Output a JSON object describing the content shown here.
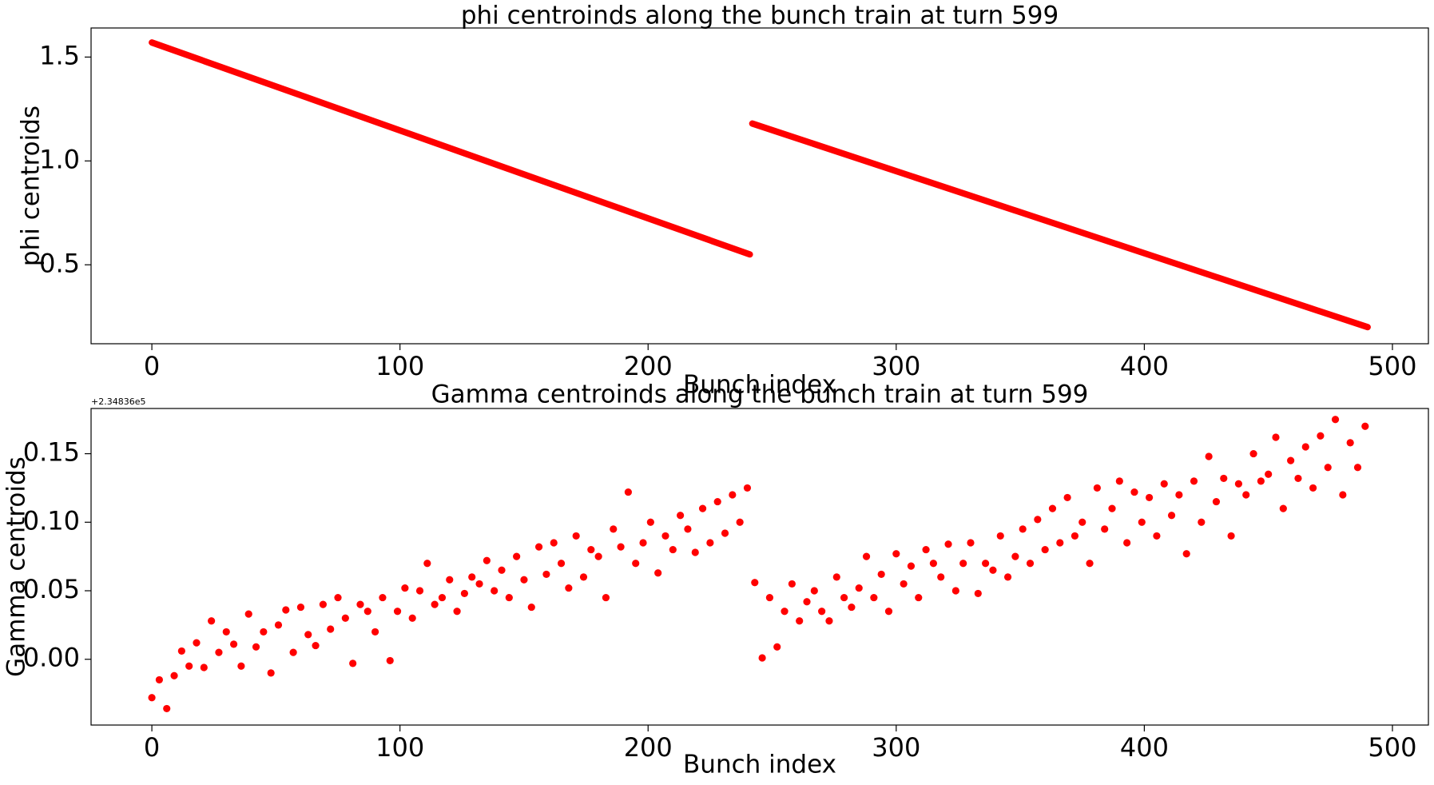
{
  "chart_data": [
    {
      "type": "line",
      "title": "phi centroinds along the bunch train at turn 599",
      "xlabel": "Bunch index",
      "ylabel": "phi centroids",
      "series": [
        {
          "color": "#ff0000",
          "x": [
            0,
            241
          ],
          "values": [
            1.57,
            0.55
          ]
        },
        {
          "color": "#ff0000",
          "x": [
            242,
            490
          ],
          "values": [
            1.18,
            0.2
          ]
        }
      ],
      "xlim": [
        -24.5,
        514.5
      ],
      "ylim": [
        0.12,
        1.64
      ],
      "xticks": [
        0,
        100,
        200,
        300,
        400,
        500
      ],
      "yticks": [
        {
          "value": 0.5,
          "label": "0.5"
        },
        {
          "value": 1.0,
          "label": "1.0"
        },
        {
          "value": 1.5,
          "label": "1.5"
        }
      ]
    },
    {
      "type": "scatter",
      "title": "Gamma centroinds along the bunch train at turn 599",
      "xlabel": "Bunch index",
      "ylabel": "Gamma centroids",
      "offset_label": "+2.34836e5",
      "series": [
        {
          "color": "#ff0000",
          "x": [
            0,
            3,
            6,
            9,
            12,
            15,
            18,
            21,
            24,
            27,
            30,
            33,
            36,
            39,
            42,
            45,
            48,
            51,
            54,
            57,
            60,
            63,
            66,
            69,
            72,
            75,
            78,
            81,
            84,
            87,
            90,
            93,
            96,
            99,
            102,
            105,
            108,
            111,
            114,
            117,
            120,
            123,
            126,
            129,
            132,
            135,
            138,
            141,
            144,
            147,
            150,
            153,
            156,
            159,
            162,
            165,
            168,
            171,
            174,
            177,
            180,
            183,
            186,
            189,
            192,
            195,
            198,
            201,
            204,
            207,
            210,
            213,
            216,
            219,
            222,
            225,
            228,
            231,
            234,
            237,
            240,
            243,
            246,
            249,
            252,
            255,
            258,
            261,
            264,
            267,
            270,
            273,
            276,
            279,
            282,
            285,
            288,
            291,
            294,
            297,
            300,
            303,
            306,
            309,
            312,
            315,
            318,
            321,
            324,
            327,
            330,
            333,
            336,
            339,
            342,
            345,
            348,
            351,
            354,
            357,
            360,
            363,
            366,
            369,
            372,
            375,
            378,
            381,
            384,
            387,
            390,
            393,
            396,
            399,
            402,
            405,
            408,
            411,
            414,
            417,
            420,
            423,
            426,
            429,
            432,
            435,
            438,
            441,
            444,
            447,
            450,
            453,
            456,
            459,
            462,
            465,
            468,
            471,
            474,
            477,
            480,
            483,
            486,
            489
          ],
          "values": [
            -0.028,
            -0.015,
            -0.036,
            -0.012,
            0.006,
            -0.005,
            0.012,
            -0.006,
            0.028,
            0.005,
            0.02,
            0.011,
            -0.005,
            0.033,
            0.009,
            0.02,
            -0.01,
            0.025,
            0.036,
            0.005,
            0.038,
            0.018,
            0.01,
            0.04,
            0.022,
            0.045,
            0.03,
            -0.003,
            0.04,
            0.035,
            0.02,
            0.045,
            -0.001,
            0.035,
            0.052,
            0.03,
            0.05,
            0.07,
            0.04,
            0.045,
            0.058,
            0.035,
            0.048,
            0.06,
            0.055,
            0.072,
            0.05,
            0.065,
            0.045,
            0.075,
            0.058,
            0.038,
            0.082,
            0.062,
            0.085,
            0.07,
            0.052,
            0.09,
            0.06,
            0.08,
            0.075,
            0.045,
            0.095,
            0.082,
            0.122,
            0.07,
            0.085,
            0.1,
            0.063,
            0.09,
            0.08,
            0.105,
            0.095,
            0.078,
            0.11,
            0.085,
            0.115,
            0.092,
            0.12,
            0.1,
            0.125,
            0.056,
            0.001,
            0.045,
            0.009,
            0.035,
            0.055,
            0.028,
            0.042,
            0.05,
            0.035,
            0.028,
            0.06,
            0.045,
            0.038,
            0.052,
            0.075,
            0.045,
            0.062,
            0.035,
            0.077,
            0.055,
            0.068,
            0.045,
            0.08,
            0.07,
            0.06,
            0.084,
            0.05,
            0.07,
            0.085,
            0.048,
            0.07,
            0.065,
            0.09,
            0.06,
            0.075,
            0.095,
            0.07,
            0.102,
            0.08,
            0.11,
            0.085,
            0.118,
            0.09,
            0.1,
            0.07,
            0.125,
            0.095,
            0.11,
            0.13,
            0.085,
            0.122,
            0.1,
            0.118,
            0.09,
            0.128,
            0.105,
            0.12,
            0.077,
            0.13,
            0.1,
            0.148,
            0.115,
            0.132,
            0.09,
            0.128,
            0.12,
            0.15,
            0.13,
            0.135,
            0.162,
            0.11,
            0.145,
            0.132,
            0.155,
            0.125,
            0.163,
            0.14,
            0.175,
            0.12,
            0.158,
            0.14,
            0.17
          ]
        }
      ],
      "xlim": [
        -24.5,
        514.5
      ],
      "ylim": [
        -0.048,
        0.183
      ],
      "xticks": [
        0,
        100,
        200,
        300,
        400,
        500
      ],
      "yticks": [
        {
          "value": 0.0,
          "label": "0.00"
        },
        {
          "value": 0.05,
          "label": "0.05"
        },
        {
          "value": 0.1,
          "label": "0.10"
        },
        {
          "value": 0.15,
          "label": "0.15"
        }
      ]
    }
  ]
}
